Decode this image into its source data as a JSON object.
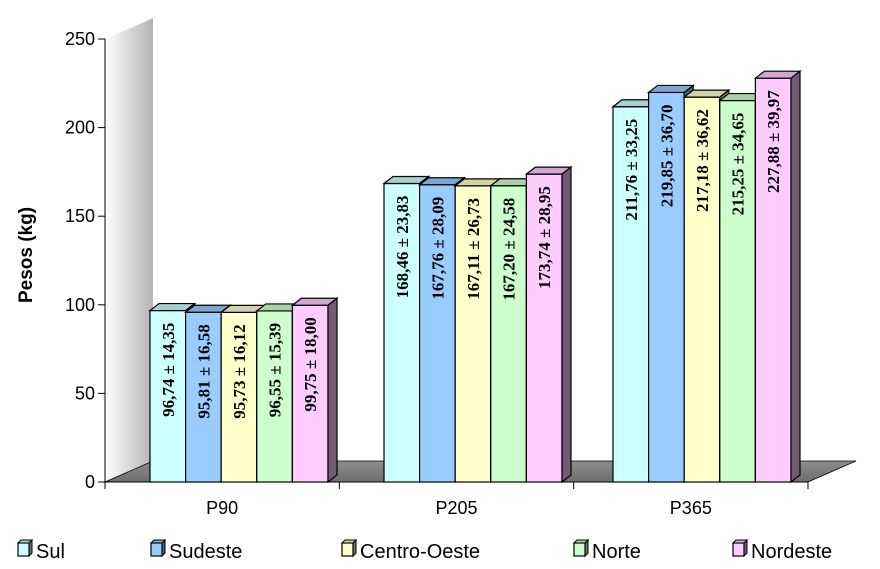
{
  "chart_data": {
    "type": "bar",
    "title": "",
    "xlabel": "",
    "ylabel": "Pesos (kg)",
    "ylim": [
      0,
      250
    ],
    "yticks": [
      "0",
      "50",
      "100",
      "150",
      "200",
      "250"
    ],
    "categories": [
      "P90",
      "P205",
      "P365"
    ],
    "grid": false,
    "legend_position": "bottom",
    "series": [
      {
        "name": "Sul",
        "color": "#ccffff",
        "values": [
          96.74,
          168.46,
          211.76
        ],
        "labels": [
          "96,74 ± 14,35",
          "168,46 ± 23,83",
          "211,76 ± 33,25"
        ]
      },
      {
        "name": "Sudeste",
        "color": "#99ccff",
        "values": [
          95.81,
          167.76,
          219.85
        ],
        "labels": [
          "95,81 ± 16,58",
          "167,76 ± 28,09",
          "219,85 ± 36,70"
        ]
      },
      {
        "name": "Centro-Oeste",
        "color": "#ffffcc",
        "values": [
          95.73,
          167.11,
          217.18
        ],
        "labels": [
          "95,73 ± 16,12",
          "167,11 ± 26,73",
          "217,18 ± 36,62"
        ]
      },
      {
        "name": "Norte",
        "color": "#ccffcc",
        "values": [
          96.55,
          167.2,
          215.25
        ],
        "labels": [
          "96,55 ± 15,39",
          "167,20 ± 24,58",
          "215,25 ± 34,65"
        ]
      },
      {
        "name": "Nordeste",
        "color": "#ffccff",
        "values": [
          99.75,
          173.74,
          227.88
        ],
        "labels": [
          "99,75 ± 18,00",
          "173,74 ± 28,95",
          "227,88 ± 39,97"
        ]
      }
    ]
  }
}
